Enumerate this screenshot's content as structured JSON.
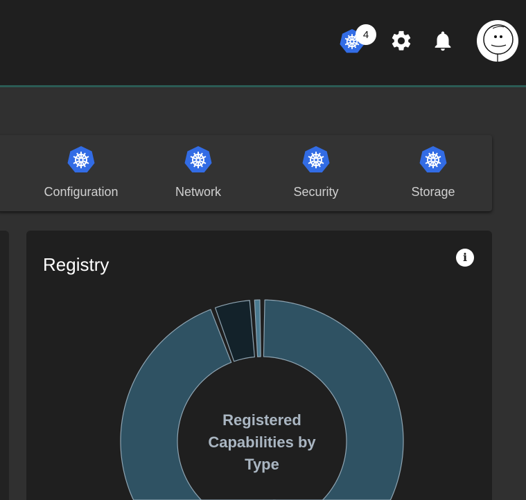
{
  "header": {
    "notification_count": "4",
    "icons": [
      "kubernetes-icon",
      "gear-icon",
      "bell-icon",
      "avatar"
    ]
  },
  "toolbar": {
    "items": [
      {
        "label": "Configuration",
        "icon": "kubernetes-icon"
      },
      {
        "label": "Network",
        "icon": "kubernetes-icon"
      },
      {
        "label": "Security",
        "icon": "kubernetes-icon"
      },
      {
        "label": "Storage",
        "icon": "kubernetes-icon"
      }
    ]
  },
  "registry": {
    "title": "Registry",
    "info_icon": "info-icon"
  },
  "chart_data": {
    "type": "pie",
    "title": "Registered Capabilities by Type",
    "donut": true,
    "values": [
      48,
      46,
      4,
      0.6
    ],
    "colors": [
      "#2f5263",
      "#2f5263",
      "#13222a",
      "#4a7a90"
    ]
  },
  "colors": {
    "accent": "#326ce5",
    "header_bg": "#1f1f1f",
    "header_border": "#2b5c55"
  }
}
